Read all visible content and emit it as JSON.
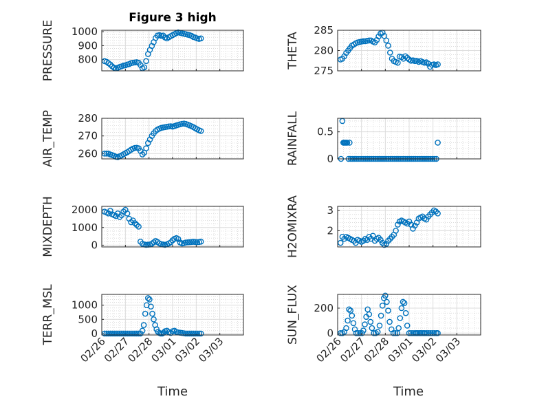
{
  "figure": {
    "title": "Figure 3 high",
    "xlabel": "Time",
    "marker_color": "#0072bd"
  },
  "x_ticks": [
    "02/26",
    "02/27",
    "02/28",
    "03/01",
    "03/02",
    "03/03"
  ],
  "chart_data": [
    {
      "type": "scatter",
      "name": "pressure",
      "ylabel": "PRESSURE",
      "ylim": [
        720,
        1010
      ],
      "yticks": [
        "800",
        "900",
        "1000"
      ],
      "ytick_values": [
        800,
        900,
        1000
      ],
      "xlim": [
        0,
        6
      ],
      "x": [
        0.12,
        0.2,
        0.28,
        0.36,
        0.44,
        0.52,
        0.6,
        0.68,
        0.76,
        0.84,
        0.92,
        1.0,
        1.08,
        1.16,
        1.24,
        1.32,
        1.4,
        1.48,
        1.56,
        1.64,
        1.72,
        1.8,
        1.88,
        1.96,
        2.04,
        2.12,
        2.2,
        2.28,
        2.36,
        2.44,
        2.52,
        2.6,
        2.68,
        2.76,
        2.84,
        2.92,
        3.0,
        3.08,
        3.16,
        3.24,
        3.32,
        3.4,
        3.48,
        3.56,
        3.64,
        3.72,
        3.8,
        3.88,
        3.96,
        4.04,
        4.12,
        4.2
      ],
      "y": [
        790,
        785,
        775,
        765,
        752,
        742,
        738,
        742,
        748,
        752,
        758,
        760,
        765,
        768,
        775,
        778,
        780,
        782,
        778,
        762,
        738,
        745,
        790,
        840,
        870,
        898,
        925,
        955,
        972,
        975,
        970,
        972,
        958,
        952,
        960,
        968,
        975,
        982,
        990,
        995,
        992,
        988,
        985,
        982,
        978,
        975,
        970,
        962,
        958,
        952,
        948,
        952
      ]
    },
    {
      "type": "scatter",
      "name": "theta",
      "ylabel": "THETA",
      "ylim": [
        275,
        285
      ],
      "yticks": [
        "275",
        "280",
        "285"
      ],
      "ytick_values": [
        275,
        280,
        285
      ],
      "xlim": [
        0,
        6
      ],
      "x": [
        0.12,
        0.2,
        0.28,
        0.36,
        0.44,
        0.52,
        0.6,
        0.68,
        0.76,
        0.84,
        0.92,
        1.0,
        1.08,
        1.16,
        1.24,
        1.32,
        1.4,
        1.48,
        1.56,
        1.64,
        1.72,
        1.8,
        1.88,
        1.96,
        2.04,
        2.12,
        2.2,
        2.28,
        2.36,
        2.44,
        2.52,
        2.6,
        2.68,
        2.76,
        2.84,
        2.92,
        3.0,
        3.08,
        3.16,
        3.24,
        3.32,
        3.4,
        3.48,
        3.56,
        3.64,
        3.72,
        3.8,
        3.88,
        3.96,
        4.04,
        4.12,
        4.2
      ],
      "y": [
        277.8,
        278,
        278.6,
        279.4,
        280,
        280.6,
        281.2,
        281.5,
        281.8,
        282,
        282.1,
        282.2,
        282.3,
        282.3,
        282.4,
        282.5,
        282.5,
        282.2,
        282,
        282.6,
        283.5,
        284.2,
        284.4,
        283.6,
        282.5,
        281.2,
        279.5,
        278,
        277.4,
        277.2,
        277,
        278.5,
        278.4,
        278,
        278.6,
        278.2,
        277.8,
        277.5,
        277.6,
        277.4,
        277.5,
        277.2,
        277.4,
        277.2,
        277,
        277.1,
        276.8,
        276,
        276.5,
        276.6,
        276.4,
        276.6
      ]
    },
    {
      "type": "scatter",
      "name": "air_temp",
      "ylabel": "AIR_TEMP",
      "ylim": [
        257,
        280
      ],
      "yticks": [
        "260",
        "270",
        "280"
      ],
      "ytick_values": [
        260,
        270,
        280
      ],
      "xlim": [
        0,
        6
      ],
      "x": [
        0.12,
        0.2,
        0.28,
        0.36,
        0.44,
        0.52,
        0.6,
        0.68,
        0.76,
        0.84,
        0.92,
        1.0,
        1.08,
        1.16,
        1.24,
        1.32,
        1.4,
        1.48,
        1.56,
        1.64,
        1.72,
        1.8,
        1.88,
        1.96,
        2.04,
        2.12,
        2.2,
        2.28,
        2.36,
        2.44,
        2.52,
        2.6,
        2.68,
        2.76,
        2.84,
        2.92,
        3.0,
        3.08,
        3.16,
        3.24,
        3.32,
        3.4,
        3.48,
        3.56,
        3.64,
        3.72,
        3.8,
        3.88,
        3.96,
        4.04,
        4.12,
        4.2
      ],
      "y": [
        260,
        260,
        260,
        259.5,
        259.2,
        258.8,
        258.2,
        258,
        258.5,
        259,
        259.6,
        260.2,
        260.8,
        261.5,
        262.2,
        262.8,
        263.2,
        263.3,
        263,
        261.5,
        259.5,
        260.5,
        263,
        266,
        268,
        270,
        271.5,
        272.8,
        273.6,
        274.2,
        274.6,
        274.8,
        275,
        275.2,
        275.4,
        275.5,
        275.3,
        275.6,
        276,
        276.3,
        276.6,
        276.9,
        277,
        276.8,
        276.4,
        276,
        275.5,
        275,
        274.4,
        273.8,
        273.2,
        272.8
      ]
    },
    {
      "type": "scatter",
      "name": "rainfall",
      "ylabel": "RAINFALL",
      "ylim": [
        0,
        0.75
      ],
      "yticks": [
        "0",
        "0.5"
      ],
      "ytick_values": [
        0,
        0.5
      ],
      "xlim": [
        0,
        6
      ],
      "x": [
        0.14,
        0.2,
        0.24,
        0.28,
        0.32,
        0.36,
        0.4,
        0.46,
        0.5,
        0.55,
        0.62,
        0.7,
        0.78,
        0.86,
        0.94,
        1.02,
        1.1,
        1.18,
        1.26,
        1.34,
        1.42,
        1.5,
        1.58,
        1.66,
        1.74,
        1.82,
        1.9,
        1.98,
        2.06,
        2.14,
        2.22,
        2.3,
        2.38,
        2.46,
        2.54,
        2.62,
        2.7,
        2.78,
        2.86,
        2.94,
        3.02,
        3.1,
        3.18,
        3.26,
        3.34,
        3.42,
        3.5,
        3.58,
        3.66,
        3.74,
        3.82,
        3.9,
        3.98,
        4.06,
        4.14,
        4.2
      ],
      "y": [
        0,
        0.7,
        0.3,
        0.3,
        0.3,
        0.3,
        0.3,
        0,
        0.3,
        0,
        0,
        0,
        0,
        0,
        0,
        0,
        0,
        0,
        0,
        0,
        0,
        0,
        0,
        0,
        0,
        0,
        0,
        0,
        0,
        0,
        0,
        0,
        0,
        0,
        0,
        0,
        0,
        0,
        0,
        0,
        0,
        0,
        0,
        0,
        0,
        0,
        0,
        0,
        0,
        0,
        0,
        0,
        0,
        0,
        0,
        0.3
      ]
    },
    {
      "type": "scatter",
      "name": "mixdepth",
      "ylabel": "MIXDEPTH",
      "ylim": [
        -100,
        2200
      ],
      "yticks": [
        "0",
        "1000",
        "2000"
      ],
      "ytick_values": [
        0,
        1000,
        2000
      ],
      "xlim": [
        0,
        6
      ],
      "x": [
        0.12,
        0.2,
        0.28,
        0.36,
        0.44,
        0.52,
        0.6,
        0.68,
        0.76,
        0.84,
        0.92,
        1.0,
        1.08,
        1.16,
        1.24,
        1.32,
        1.4,
        1.48,
        1.56,
        1.64,
        1.72,
        1.8,
        1.88,
        1.96,
        2.04,
        2.12,
        2.2,
        2.28,
        2.36,
        2.44,
        2.52,
        2.6,
        2.68,
        2.76,
        2.84,
        2.92,
        3.0,
        3.08,
        3.16,
        3.24,
        3.32,
        3.4,
        3.48,
        3.56,
        3.64,
        3.72,
        3.8,
        3.88,
        3.96,
        4.04,
        4.12,
        4.2
      ],
      "y": [
        1900,
        1850,
        1800,
        1950,
        1750,
        1700,
        1650,
        1800,
        1600,
        1700,
        1900,
        2000,
        1800,
        1500,
        1300,
        1400,
        1250,
        1150,
        1050,
        200,
        80,
        40,
        20,
        30,
        40,
        80,
        160,
        240,
        180,
        100,
        60,
        40,
        20,
        50,
        100,
        160,
        280,
        360,
        400,
        350,
        150,
        100,
        120,
        150,
        160,
        170,
        180,
        190,
        180,
        170,
        180,
        200
      ]
    },
    {
      "type": "scatter",
      "name": "h2omixra",
      "ylabel": "H2OMIXRA",
      "ylim": [
        1.2,
        3.2
      ],
      "yticks": [
        "2",
        "3"
      ],
      "ytick_values": [
        2,
        3
      ],
      "xlim": [
        0,
        6
      ],
      "x": [
        0.12,
        0.2,
        0.28,
        0.36,
        0.44,
        0.52,
        0.6,
        0.68,
        0.76,
        0.84,
        0.92,
        1.0,
        1.08,
        1.16,
        1.24,
        1.32,
        1.4,
        1.48,
        1.56,
        1.64,
        1.72,
        1.8,
        1.88,
        1.96,
        2.04,
        2.12,
        2.2,
        2.28,
        2.36,
        2.44,
        2.52,
        2.6,
        2.68,
        2.76,
        2.84,
        2.92,
        3.0,
        3.08,
        3.16,
        3.24,
        3.32,
        3.4,
        3.48,
        3.56,
        3.64,
        3.72,
        3.8,
        3.88,
        3.96,
        4.04,
        4.12,
        4.2
      ],
      "y": [
        1.4,
        1.7,
        1.6,
        1.7,
        1.65,
        1.6,
        1.55,
        1.5,
        1.4,
        1.55,
        1.5,
        1.45,
        1.5,
        1.6,
        1.55,
        1.7,
        1.6,
        1.75,
        1.5,
        1.6,
        1.65,
        1.55,
        1.4,
        1.3,
        1.35,
        1.5,
        1.6,
        1.7,
        1.8,
        2.0,
        2.3,
        2.45,
        2.5,
        2.45,
        2.4,
        2.35,
        2.45,
        2.3,
        2.1,
        2.25,
        2.4,
        2.6,
        2.65,
        2.7,
        2.6,
        2.55,
        2.7,
        2.8,
        2.9,
        3.0,
        2.95,
        2.85
      ]
    },
    {
      "type": "scatter",
      "name": "terr_msl",
      "ylabel": "TERR_MSL",
      "ylim": [
        -50,
        1380
      ],
      "yticks": [
        "0",
        "500",
        "1000"
      ],
      "ytick_values": [
        0,
        500,
        1000
      ],
      "xlim": [
        0,
        6
      ],
      "x": [
        0.12,
        0.2,
        0.28,
        0.36,
        0.44,
        0.52,
        0.6,
        0.68,
        0.76,
        0.84,
        0.92,
        1.0,
        1.08,
        1.16,
        1.24,
        1.32,
        1.4,
        1.48,
        1.56,
        1.64,
        1.72,
        1.78,
        1.84,
        1.9,
        1.96,
        2.02,
        2.08,
        2.14,
        2.2,
        2.26,
        2.32,
        2.38,
        2.44,
        2.5,
        2.56,
        2.62,
        2.68,
        2.76,
        2.84,
        2.92,
        3.0,
        3.08,
        3.16,
        3.24,
        3.32,
        3.4,
        3.48,
        3.56,
        3.64,
        3.72,
        3.8,
        3.88,
        3.96,
        4.04,
        4.12,
        4.2
      ],
      "y": [
        0,
        0,
        0,
        0,
        0,
        0,
        0,
        0,
        0,
        0,
        0,
        0,
        0,
        0,
        0,
        0,
        0,
        0,
        0,
        0,
        100,
        300,
        700,
        1000,
        1250,
        1200,
        950,
        700,
        500,
        300,
        150,
        60,
        20,
        0,
        0,
        30,
        80,
        100,
        50,
        20,
        80,
        100,
        60,
        40,
        30,
        20,
        10,
        0,
        0,
        0,
        0,
        0,
        0,
        0,
        0,
        0
      ]
    },
    {
      "type": "scatter",
      "name": "sun_flux",
      "ylabel": "SUN_FLUX",
      "ylim": [
        -15,
        310
      ],
      "yticks": [
        "0",
        "200"
      ],
      "ytick_values": [
        0,
        200
      ],
      "xlim": [
        0,
        6
      ],
      "x": [
        0.12,
        0.2,
        0.28,
        0.36,
        0.42,
        0.48,
        0.54,
        0.6,
        0.66,
        0.72,
        0.78,
        0.86,
        0.94,
        1.02,
        1.08,
        1.14,
        1.2,
        1.26,
        1.32,
        1.38,
        1.44,
        1.52,
        1.6,
        1.68,
        1.76,
        1.82,
        1.88,
        1.94,
        2.0,
        2.06,
        2.12,
        2.18,
        2.26,
        2.34,
        2.42,
        2.5,
        2.56,
        2.62,
        2.68,
        2.74,
        2.8,
        2.86,
        2.92,
        3.0,
        3.08,
        3.16,
        3.24,
        3.3,
        3.36,
        3.42,
        3.48,
        3.54,
        3.6,
        3.66,
        3.74,
        3.82,
        3.9,
        3.98,
        4.06,
        4.14,
        4.2
      ],
      "y": [
        0,
        0,
        10,
        40,
        100,
        190,
        180,
        140,
        80,
        30,
        0,
        0,
        0,
        0,
        20,
        70,
        130,
        190,
        150,
        90,
        40,
        0,
        0,
        10,
        60,
        140,
        220,
        280,
        300,
        250,
        180,
        90,
        30,
        0,
        0,
        0,
        40,
        120,
        200,
        250,
        240,
        160,
        60,
        0,
        0,
        0,
        0,
        0,
        0,
        0,
        0,
        0,
        0,
        0,
        0,
        0,
        0,
        0,
        0,
        0,
        0
      ]
    }
  ]
}
